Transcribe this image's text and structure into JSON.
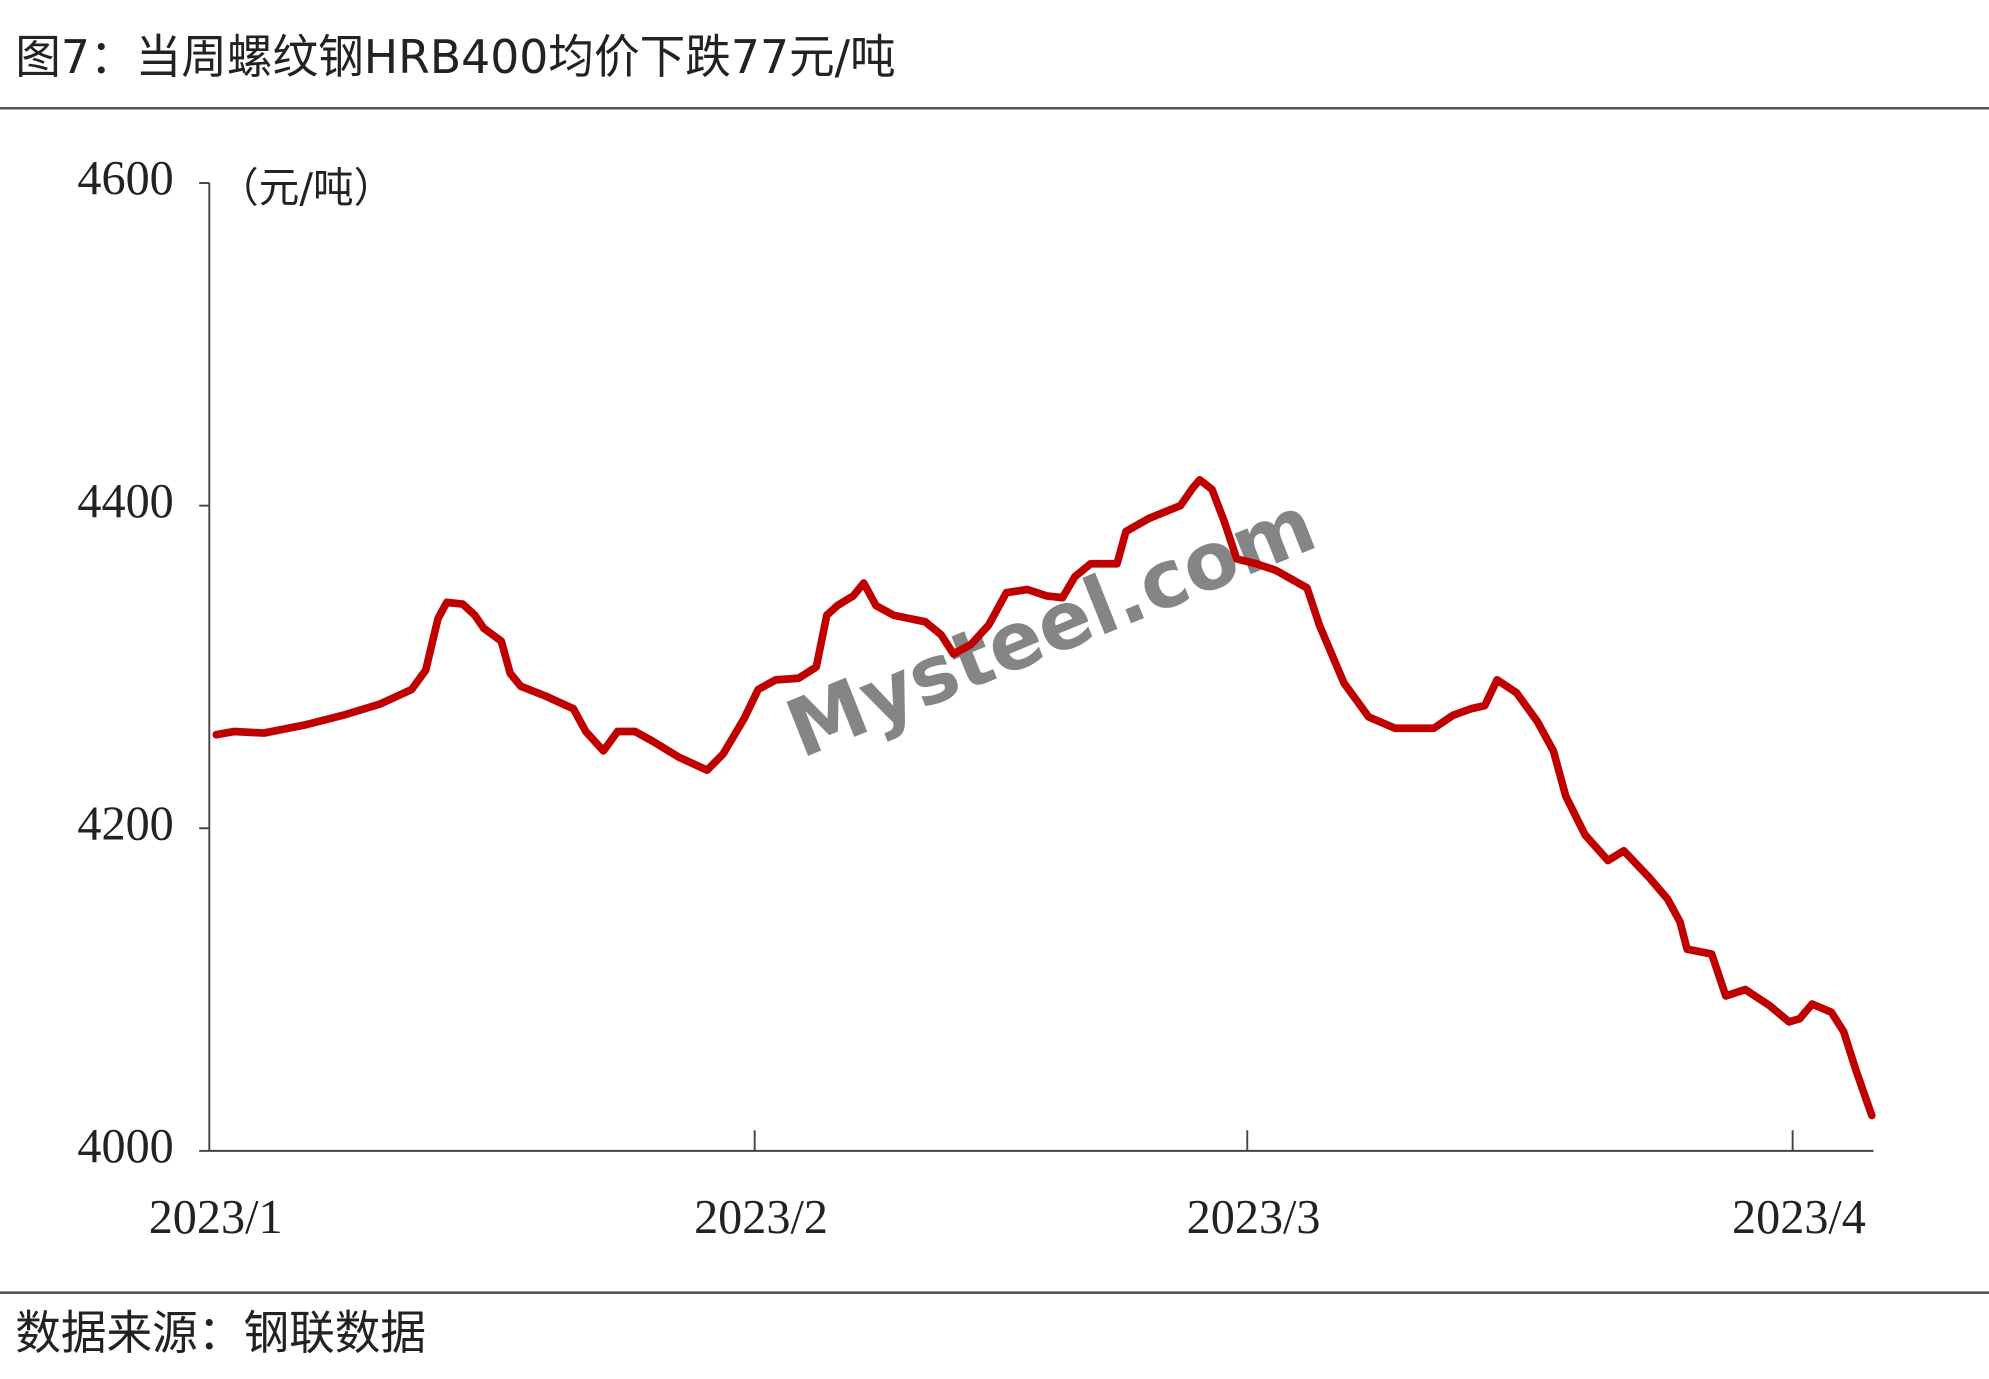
{
  "chart_data": {
    "type": "line",
    "title": "图7：当周螺纹钢HRB400均价下跌77元/吨",
    "y_unit": "（元/吨）",
    "source": "数据来源：钢联数据",
    "watermark": "Mysteel.com",
    "xlim": [
      0,
      94.6
    ],
    "xticks": [
      {
        "value": 0,
        "label": "2023/1"
      },
      {
        "value": 31,
        "label": "2023/2"
      },
      {
        "value": 59,
        "label": "2023/3"
      },
      {
        "value": 90,
        "label": "2023/4"
      }
    ],
    "ylim": [
      4000,
      4600
    ],
    "yticks": [
      4000,
      4200,
      4400,
      4600
    ],
    "series": [
      {
        "color": "#c00000",
        "x": [
          0.4,
          1.4,
          3.1,
          5.4,
          7.6,
          9.7,
          11.5,
          12.3,
          13.0,
          13.5,
          14.4,
          15.1,
          15.6,
          16.6,
          17.1,
          17.7,
          19.1,
          20.7,
          21.4,
          22.4,
          23.2,
          24.2,
          25.2,
          26.7,
          28.3,
          29.2,
          30.4,
          31.2,
          32.2,
          33.5,
          34.5,
          35.1,
          35.7,
          36.6,
          37.2,
          37.9,
          38.9,
          40.7,
          41.6,
          42.3,
          43.3,
          44.3,
          45.3,
          46.5,
          47.6,
          48.5,
          49.2,
          50.1,
          51.2,
          51.6,
          52.1,
          53.4,
          55.2,
          55.9,
          56.3,
          57.0,
          57.7,
          58.4,
          59.5,
          60.6,
          62.4,
          63.1,
          64.5,
          65.9,
          67.4,
          69.6,
          70.7,
          71.7,
          72.5,
          73.2,
          74.3,
          75.5,
          76.4,
          77.1,
          78.2,
          79.5,
          80.4,
          81.8,
          82.9,
          83.6,
          84.0,
          85.4,
          86.2,
          87.3,
          88.7,
          89.8,
          90.4,
          91.1,
          92.2,
          92.9,
          93.6,
          94.5
        ],
        "values": [
          4258,
          4260,
          4259,
          4264,
          4270,
          4277,
          4286,
          4298,
          4330,
          4340,
          4339,
          4332,
          4324,
          4316,
          4296,
          4288,
          4282,
          4274,
          4260,
          4248,
          4260,
          4260,
          4254,
          4244,
          4236,
          4246,
          4268,
          4286,
          4292,
          4293,
          4300,
          4332,
          4338,
          4344,
          4352,
          4338,
          4332,
          4328,
          4320,
          4308,
          4314,
          4326,
          4346,
          4348,
          4344,
          4343,
          4356,
          4364,
          4364,
          4364,
          4384,
          4392,
          4400,
          4411,
          4416,
          4410,
          4390,
          4367,
          4364,
          4360,
          4349,
          4326,
          4290,
          4269,
          4262,
          4262,
          4270,
          4274,
          4276,
          4292,
          4284,
          4266,
          4248,
          4220,
          4196,
          4180,
          4186,
          4170,
          4156,
          4142,
          4125,
          4122,
          4096,
          4100,
          4090,
          4080,
          4082,
          4091,
          4086,
          4074,
          4050,
          4022
        ]
      }
    ]
  }
}
